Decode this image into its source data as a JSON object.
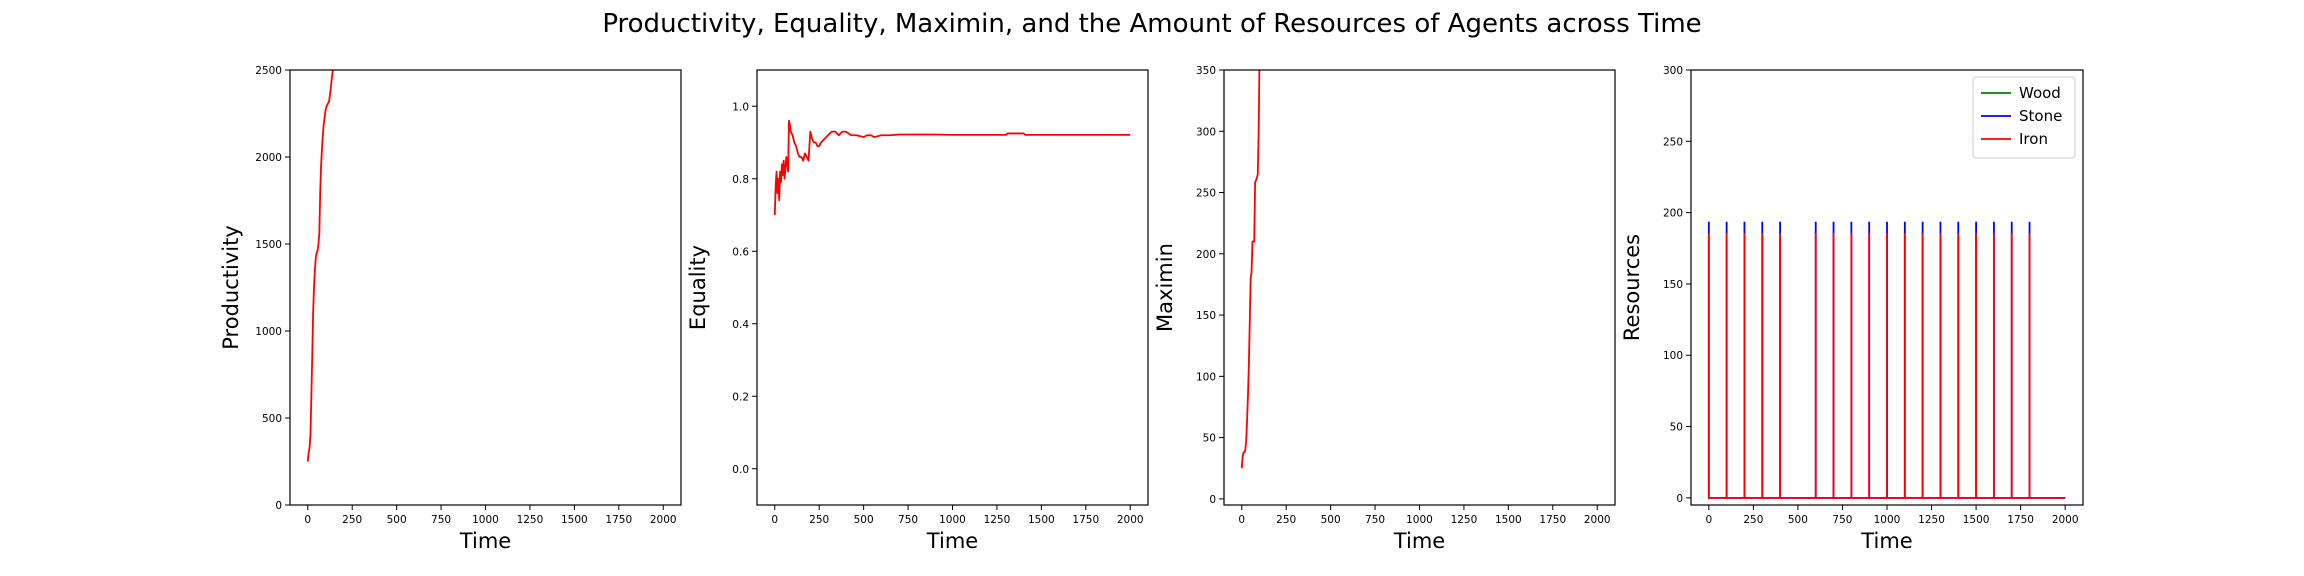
{
  "figure": {
    "title": "Productivity, Equality, Maximin, and the Amount of Resources of Agents across Time"
  },
  "colors": {
    "wood": "#008000",
    "stone": "#0000ff",
    "iron": "#ff0000",
    "line": "#ff0000"
  },
  "chart_data": [
    {
      "type": "line",
      "xlabel": "Time",
      "ylabel": "Productivity",
      "xlim": [
        -100,
        2100
      ],
      "ylim": [
        0,
        2500
      ],
      "xticks": [
        0,
        250,
        500,
        750,
        1000,
        1250,
        1500,
        1750,
        2000
      ],
      "yticks": [
        0,
        500,
        1000,
        1500,
        2000,
        2500
      ],
      "grid": false,
      "series": [
        {
          "color": "#ff0000",
          "x": [
            0,
            5,
            10,
            15,
            20,
            25,
            30,
            35,
            40,
            45,
            50,
            55,
            60,
            65,
            70,
            75,
            80,
            85,
            90,
            95,
            100,
            105,
            110,
            115,
            120,
            125,
            130,
            135,
            140,
            145,
            150
          ],
          "y": [
            250,
            300,
            330,
            400,
            620,
            850,
            1100,
            1250,
            1350,
            1420,
            1450,
            1460,
            1500,
            1560,
            1800,
            1950,
            2050,
            2130,
            2190,
            2230,
            2270,
            2290,
            2300,
            2310,
            2320,
            2360,
            2400,
            2450,
            2490,
            2520,
            2560
          ]
        }
      ]
    },
    {
      "type": "line",
      "xlabel": "Time",
      "ylabel": "Equality",
      "xlim": [
        -100,
        2100
      ],
      "ylim": [
        -0.1,
        1.1
      ],
      "xticks": [
        0,
        250,
        500,
        750,
        1000,
        1250,
        1500,
        1750,
        2000
      ],
      "yticks": [
        0.0,
        0.2,
        0.4,
        0.6,
        0.8,
        1.0
      ],
      "ytick_labels": [
        "0.0",
        "0.2",
        "0.4",
        "0.6",
        "0.8",
        "1.0"
      ],
      "grid": false,
      "series": [
        {
          "color": "#ff0000",
          "x": [
            0,
            5,
            10,
            15,
            20,
            25,
            30,
            35,
            40,
            45,
            50,
            55,
            60,
            65,
            70,
            75,
            80,
            85,
            90,
            100,
            110,
            120,
            130,
            140,
            150,
            160,
            170,
            180,
            190,
            200,
            210,
            220,
            230,
            240,
            250,
            260,
            280,
            300,
            320,
            340,
            360,
            380,
            400,
            430,
            460,
            500,
            520,
            540,
            560,
            600,
            650,
            700,
            800,
            900,
            1000,
            1100,
            1200,
            1300,
            1310,
            1400,
            1410,
            1500,
            1600,
            1700,
            1800,
            1900,
            2000
          ],
          "y": [
            0.7,
            0.78,
            0.82,
            0.76,
            0.8,
            0.74,
            0.82,
            0.79,
            0.84,
            0.81,
            0.85,
            0.8,
            0.83,
            0.86,
            0.84,
            0.82,
            0.96,
            0.95,
            0.93,
            0.92,
            0.9,
            0.89,
            0.87,
            0.86,
            0.86,
            0.85,
            0.87,
            0.86,
            0.85,
            0.93,
            0.91,
            0.9,
            0.9,
            0.89,
            0.89,
            0.9,
            0.91,
            0.92,
            0.93,
            0.93,
            0.92,
            0.93,
            0.93,
            0.92,
            0.92,
            0.915,
            0.92,
            0.92,
            0.915,
            0.92,
            0.92,
            0.922,
            0.922,
            0.922,
            0.921,
            0.921,
            0.921,
            0.921,
            0.925,
            0.925,
            0.921,
            0.921,
            0.921,
            0.921,
            0.921,
            0.921,
            0.921
          ]
        }
      ]
    },
    {
      "type": "line",
      "xlabel": "Time",
      "ylabel": "Maximin",
      "xlim": [
        -100,
        2100
      ],
      "ylim": [
        -5,
        350
      ],
      "xticks": [
        0,
        250,
        500,
        750,
        1000,
        1250,
        1500,
        1750,
        2000
      ],
      "yticks": [
        0,
        50,
        100,
        150,
        200,
        250,
        300,
        350
      ],
      "grid": false,
      "series": [
        {
          "color": "#ff0000",
          "x": [
            0,
            5,
            10,
            15,
            20,
            25,
            30,
            35,
            40,
            45,
            50,
            55,
            60,
            65,
            70,
            75,
            80,
            85,
            90,
            95,
            100
          ],
          "y": [
            25,
            35,
            38,
            38,
            40,
            48,
            65,
            85,
            110,
            145,
            180,
            185,
            210,
            210,
            210,
            258,
            260,
            262,
            265,
            300,
            360
          ]
        }
      ]
    },
    {
      "type": "line",
      "xlabel": "Time",
      "ylabel": "Resources",
      "xlim": [
        -100,
        2100
      ],
      "ylim": [
        -5,
        300
      ],
      "xticks": [
        0,
        250,
        500,
        750,
        1000,
        1250,
        1500,
        1750,
        2000
      ],
      "yticks": [
        0,
        50,
        100,
        150,
        200,
        250,
        300
      ],
      "legend": {
        "position": "top-right"
      },
      "grid": false,
      "spike_times": [
        0,
        100,
        200,
        300,
        400,
        600,
        700,
        800,
        900,
        1000,
        1100,
        1200,
        1300,
        1400,
        1500,
        1600,
        1700,
        1800
      ],
      "baseline": 0,
      "series": [
        {
          "name": "Wood",
          "color": "#008000",
          "spike_values": 0
        },
        {
          "name": "Stone",
          "color": "#0000ff",
          "spike_values": 193
        },
        {
          "name": "Iron",
          "color": "#ff0000",
          "spike_values": 185
        }
      ]
    }
  ]
}
